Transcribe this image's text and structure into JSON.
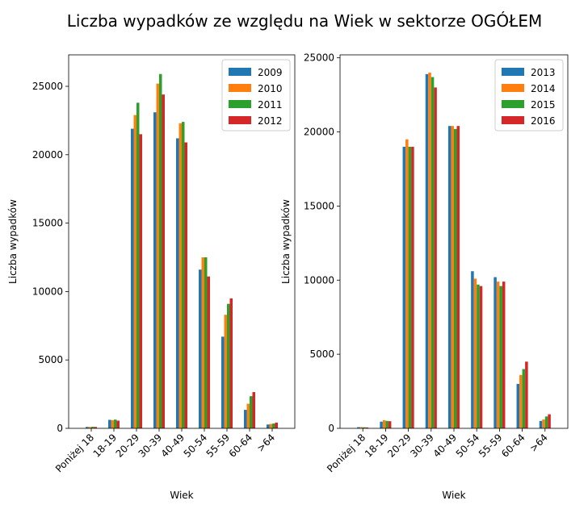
{
  "suptitle": "Liczba wypadków ze względu na Wiek w sektorze OGÓŁEM",
  "chart_data": [
    {
      "type": "bar",
      "xlabel": "Wiek",
      "ylabel": "Liczba wypadków",
      "categories": [
        "Poniżej 18",
        "18-19",
        "20-29",
        "30-39",
        "40-49",
        "50-54",
        "55-59",
        "60-64",
        ">64"
      ],
      "ylim": [
        0,
        27300
      ],
      "yticks": [
        0,
        5000,
        10000,
        15000,
        20000,
        25000
      ],
      "legend": "top-right",
      "grid": false,
      "series": [
        {
          "name": "2009",
          "color": "#1f77b4",
          "values": [
            100,
            620,
            21900,
            23100,
            21200,
            11600,
            6700,
            1350,
            280
          ]
        },
        {
          "name": "2010",
          "color": "#ff7f0e",
          "values": [
            100,
            600,
            22900,
            25200,
            22300,
            12500,
            8300,
            1800,
            320
          ]
        },
        {
          "name": "2011",
          "color": "#2ca02c",
          "values": [
            110,
            640,
            23800,
            25900,
            22400,
            12500,
            9100,
            2350,
            350
          ]
        },
        {
          "name": "2012",
          "color": "#d62728",
          "values": [
            100,
            560,
            21500,
            24400,
            20900,
            11100,
            9500,
            2650,
            420
          ]
        }
      ]
    },
    {
      "type": "bar",
      "xlabel": "Wiek",
      "ylabel": "Liczba wypadków",
      "categories": [
        "Poniżej 18",
        "18-19",
        "20-29",
        "30-39",
        "40-49",
        "50-54",
        "55-59",
        "60-64",
        ">64"
      ],
      "ylim": [
        0,
        25200
      ],
      "yticks": [
        0,
        5000,
        10000,
        15000,
        20000,
        25000
      ],
      "legend": "top-right",
      "grid": false,
      "series": [
        {
          "name": "2013",
          "color": "#1f77b4",
          "values": [
            80,
            450,
            19000,
            23900,
            20400,
            10600,
            10200,
            3000,
            500
          ]
        },
        {
          "name": "2014",
          "color": "#ff7f0e",
          "values": [
            80,
            550,
            19500,
            24000,
            20400,
            10100,
            9900,
            3600,
            600
          ]
        },
        {
          "name": "2015",
          "color": "#2ca02c",
          "values": [
            70,
            500,
            19000,
            23700,
            20200,
            9700,
            9600,
            4000,
            800
          ]
        },
        {
          "name": "2016",
          "color": "#d62728",
          "values": [
            60,
            480,
            19000,
            23000,
            20400,
            9600,
            9900,
            4500,
            950
          ]
        }
      ]
    }
  ]
}
